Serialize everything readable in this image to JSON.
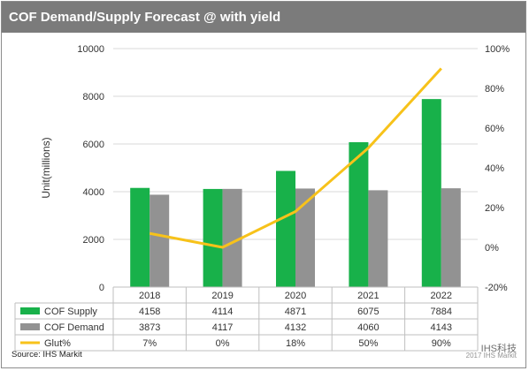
{
  "title": "COF Demand/Supply Forecast @ with yield",
  "source": "Source: IHS Markit",
  "watermark": "IHS科技",
  "watermark_sub": "2017 IHS Markit",
  "chart_data": {
    "type": "bar",
    "categories": [
      "2018",
      "2019",
      "2020",
      "2021",
      "2022"
    ],
    "ylabel": "Unit(millions)",
    "ylim": [
      0,
      10000
    ],
    "yticks": [
      "0",
      "2000",
      "4000",
      "6000",
      "8000",
      "10000"
    ],
    "y2lim": [
      -20,
      100
    ],
    "y2ticks": [
      "-20%",
      "0%",
      "20%",
      "40%",
      "60%",
      "80%",
      "100%"
    ],
    "grid": true,
    "legend": "table-below",
    "series": [
      {
        "name": "COF Supply",
        "kind": "bar",
        "color": "#18b14a",
        "values": [
          4158,
          4114,
          4871,
          6075,
          7884
        ],
        "labels": [
          "4158",
          "4114",
          "4871",
          "6075",
          "7884"
        ]
      },
      {
        "name": "COF Demand",
        "kind": "bar",
        "color": "#929292",
        "values": [
          3873,
          4117,
          4132,
          4060,
          4143
        ],
        "labels": [
          "3873",
          "4117",
          "4132",
          "4060",
          "4143"
        ]
      },
      {
        "name": "Glut%",
        "kind": "line",
        "axis": "secondary",
        "color": "#f7c21a",
        "values": [
          7,
          0,
          18,
          50,
          90
        ],
        "labels": [
          "7%",
          "0%",
          "18%",
          "50%",
          "90%"
        ]
      }
    ]
  }
}
